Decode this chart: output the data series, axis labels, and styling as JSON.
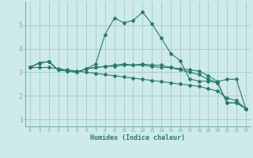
{
  "title": "",
  "xlabel": "Humidex (Indice chaleur)",
  "background_color": "#ceeaea",
  "plot_bg_color": "#ceeaea",
  "grid_color": "#aacece",
  "line_color": "#2a7a6e",
  "spine_color": "#7aadad",
  "xlim": [
    -0.5,
    23.5
  ],
  "ylim": [
    0.7,
    6.0
  ],
  "xticks": [
    0,
    1,
    2,
    3,
    4,
    5,
    6,
    7,
    8,
    9,
    10,
    11,
    12,
    13,
    14,
    15,
    16,
    17,
    18,
    19,
    20,
    21,
    22,
    23
  ],
  "yticks": [
    1,
    2,
    3,
    4,
    5
  ],
  "series": [
    {
      "x": [
        0,
        1,
        2,
        3,
        4,
        5,
        6,
        7,
        8,
        9,
        10,
        11,
        12,
        13,
        14,
        15,
        16,
        17,
        18,
        19,
        20,
        21,
        22,
        23
      ],
      "y": [
        3.2,
        3.4,
        3.45,
        3.1,
        3.05,
        3.0,
        3.15,
        3.2,
        3.25,
        3.3,
        3.35,
        3.3,
        3.35,
        3.3,
        3.3,
        3.2,
        3.15,
        3.1,
        3.05,
        2.85,
        2.6,
        2.7,
        2.7,
        1.45
      ]
    },
    {
      "x": [
        0,
        1,
        2,
        3,
        4,
        5,
        6,
        7,
        8,
        9,
        10,
        11,
        12,
        13,
        14,
        15,
        16,
        17,
        18,
        19,
        20,
        21,
        22,
        23
      ],
      "y": [
        3.2,
        3.4,
        3.45,
        3.1,
        3.05,
        3.0,
        3.15,
        3.35,
        4.6,
        5.3,
        5.1,
        5.2,
        5.55,
        5.05,
        4.45,
        3.8,
        3.5,
        2.72,
        2.62,
        2.62,
        2.55,
        1.7,
        1.7,
        1.45
      ]
    },
    {
      "x": [
        0,
        1,
        2,
        3,
        4,
        5,
        6,
        7,
        8,
        9,
        10,
        11,
        12,
        13,
        14,
        15,
        16,
        17,
        18,
        19,
        20,
        21,
        22,
        23
      ],
      "y": [
        3.2,
        3.4,
        3.45,
        3.1,
        3.05,
        3.0,
        3.15,
        3.2,
        3.25,
        3.25,
        3.3,
        3.3,
        3.3,
        3.25,
        3.2,
        3.2,
        3.1,
        3.0,
        2.9,
        2.7,
        2.55,
        1.7,
        1.7,
        1.45
      ]
    },
    {
      "x": [
        0,
        1,
        2,
        3,
        4,
        5,
        6,
        7,
        8,
        9,
        10,
        11,
        12,
        13,
        14,
        15,
        16,
        17,
        18,
        19,
        20,
        21,
        22,
        23
      ],
      "y": [
        3.2,
        3.2,
        3.2,
        3.15,
        3.1,
        3.05,
        3.0,
        2.95,
        2.9,
        2.85,
        2.8,
        2.75,
        2.7,
        2.65,
        2.6,
        2.55,
        2.5,
        2.45,
        2.4,
        2.3,
        2.2,
        1.9,
        1.8,
        1.45
      ]
    }
  ]
}
